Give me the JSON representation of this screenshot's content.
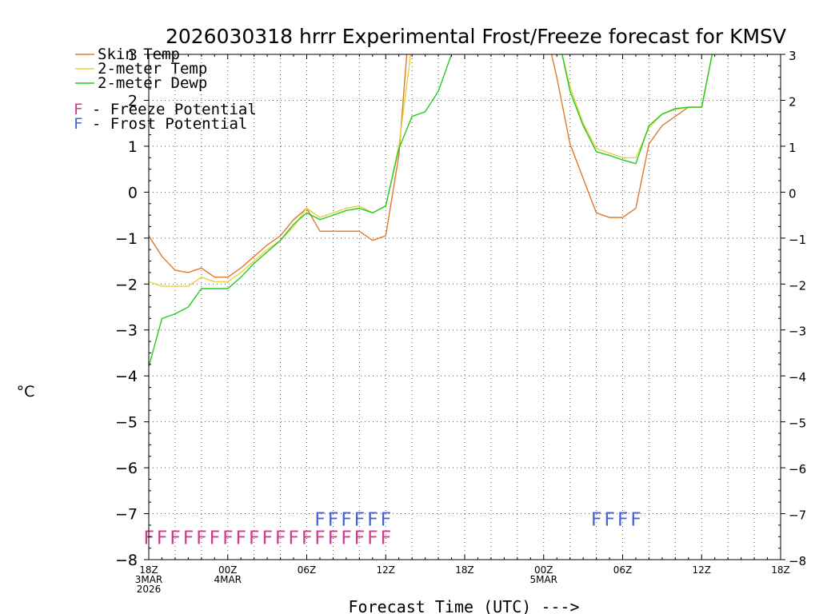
{
  "chart_data": {
    "type": "line",
    "title": "2026030318 hrrr Experimental Frost/Freeze forecast for KMSV",
    "xlabel": "Forecast Time (UTC) --->",
    "ylabel": "°C",
    "ylim": [
      -8,
      3
    ],
    "xlim": [
      0,
      48
    ],
    "yticks": [
      -8,
      -7,
      -6,
      -5,
      -4,
      -3,
      -2,
      -1,
      0,
      1,
      2,
      3
    ],
    "grid": true,
    "legend_position": "top-left",
    "x_ticks": [
      {
        "x": 0,
        "lines": [
          "18Z",
          "3MAR",
          "2026"
        ]
      },
      {
        "x": 6,
        "lines": [
          "00Z",
          "4MAR"
        ]
      },
      {
        "x": 12,
        "lines": [
          "06Z"
        ]
      },
      {
        "x": 18,
        "lines": [
          "12Z"
        ]
      },
      {
        "x": 24,
        "lines": [
          "18Z"
        ]
      },
      {
        "x": 30,
        "lines": [
          "00Z",
          "5MAR"
        ]
      },
      {
        "x": 36,
        "lines": [
          "06Z"
        ]
      },
      {
        "x": 42,
        "lines": [
          "12Z"
        ]
      },
      {
        "x": 48,
        "lines": [
          "18Z"
        ]
      }
    ],
    "series": [
      {
        "name": "Skin Temp",
        "label": "Skin Temp",
        "color": "#e07a2a",
        "points": [
          [
            0,
            -0.95
          ],
          [
            1,
            -1.4
          ],
          [
            2,
            -1.7
          ],
          [
            3,
            -1.75
          ],
          [
            4,
            -1.65
          ],
          [
            5,
            -1.85
          ],
          [
            6,
            -1.85
          ],
          [
            7,
            -1.65
          ],
          [
            8,
            -1.4
          ],
          [
            9,
            -1.15
          ],
          [
            10,
            -0.95
          ],
          [
            11,
            -0.6
          ],
          [
            12,
            -0.35
          ],
          [
            13,
            -0.85
          ],
          [
            14,
            -0.85
          ],
          [
            15,
            -0.85
          ],
          [
            16,
            -0.85
          ],
          [
            17,
            -1.05
          ],
          [
            18,
            -0.95
          ],
          [
            19,
            0.8
          ],
          [
            19.6,
            3
          ],
          [
            null,
            null
          ],
          [
            30.6,
            3
          ],
          [
            31,
            2.5
          ],
          [
            32,
            1.05
          ],
          [
            33,
            0.3
          ],
          [
            34,
            -0.45
          ],
          [
            35,
            -0.55
          ],
          [
            36,
            -0.55
          ],
          [
            37,
            -0.35
          ],
          [
            38,
            1.05
          ],
          [
            39,
            1.45
          ],
          [
            40,
            1.65
          ],
          [
            41,
            1.85
          ],
          [
            42,
            1.85
          ],
          [
            42.8,
            3
          ]
        ]
      },
      {
        "name": "2-meter Temp",
        "label": "2-meter Temp",
        "color": "#e8d040",
        "points": [
          [
            0,
            -1.95
          ],
          [
            1,
            -2.05
          ],
          [
            2,
            -2.05
          ],
          [
            3,
            -2.05
          ],
          [
            4,
            -1.85
          ],
          [
            5,
            -1.95
          ],
          [
            6,
            -1.95
          ],
          [
            7,
            -1.75
          ],
          [
            8,
            -1.5
          ],
          [
            9,
            -1.25
          ],
          [
            10,
            -1.05
          ],
          [
            11,
            -0.75
          ],
          [
            12,
            -0.35
          ],
          [
            13,
            -0.55
          ],
          [
            14,
            -0.45
          ],
          [
            15,
            -0.35
          ],
          [
            16,
            -0.3
          ],
          [
            17,
            -0.45
          ],
          [
            18,
            -0.3
          ],
          [
            19,
            1.0
          ],
          [
            19.9,
            3
          ],
          [
            null,
            null
          ],
          [
            31.4,
            3
          ],
          [
            32,
            2.3
          ],
          [
            33,
            1.5
          ],
          [
            34,
            0.95
          ],
          [
            35,
            0.85
          ],
          [
            36,
            0.75
          ],
          [
            37,
            0.75
          ],
          [
            38,
            1.4
          ],
          [
            39,
            1.7
          ],
          [
            40,
            1.8
          ],
          [
            41,
            1.85
          ],
          [
            42,
            1.85
          ],
          [
            42.8,
            3
          ]
        ]
      },
      {
        "name": "2-meter Dewp",
        "label": "2-meter Dewp",
        "color": "#22cc22",
        "points": [
          [
            0,
            -3.8
          ],
          [
            1,
            -2.75
          ],
          [
            2,
            -2.65
          ],
          [
            3,
            -2.5
          ],
          [
            4,
            -2.1
          ],
          [
            5,
            -2.1
          ],
          [
            6,
            -2.1
          ],
          [
            7,
            -1.85
          ],
          [
            8,
            -1.55
          ],
          [
            9,
            -1.3
          ],
          [
            10,
            -1.05
          ],
          [
            11,
            -0.7
          ],
          [
            12,
            -0.45
          ],
          [
            13,
            -0.6
          ],
          [
            14,
            -0.5
          ],
          [
            15,
            -0.4
          ],
          [
            16,
            -0.35
          ],
          [
            17,
            -0.45
          ],
          [
            18,
            -0.3
          ],
          [
            19,
            0.95
          ],
          [
            20,
            1.65
          ],
          [
            21,
            1.75
          ],
          [
            22,
            2.2
          ],
          [
            23,
            3.0
          ],
          [
            null,
            null
          ],
          [
            31.4,
            3
          ],
          [
            32,
            2.2
          ],
          [
            33,
            1.45
          ],
          [
            34,
            0.88
          ],
          [
            35,
            0.8
          ],
          [
            36,
            0.7
          ],
          [
            37,
            0.62
          ],
          [
            38,
            1.45
          ],
          [
            39,
            1.7
          ],
          [
            40,
            1.82
          ],
          [
            41,
            1.85
          ],
          [
            42,
            1.85
          ],
          [
            42.8,
            3
          ]
        ]
      }
    ],
    "potential_rows": [
      {
        "name": "Frost Potential",
        "label": "F - Frost Potential",
        "symbol": "F",
        "color": "#4a62d0",
        "y": -7.15,
        "x_values": [
          13,
          14,
          15,
          16,
          17,
          18,
          34,
          35,
          36,
          37
        ]
      },
      {
        "name": "Freeze Potential",
        "label": "F - Freeze Potential",
        "symbol": "F",
        "color": "#d43a8c",
        "y": -7.55,
        "x_values": [
          0,
          1,
          2,
          3,
          4,
          5,
          6,
          7,
          8,
          9,
          10,
          11,
          12,
          13,
          14,
          15,
          16,
          17,
          18
        ]
      }
    ]
  }
}
